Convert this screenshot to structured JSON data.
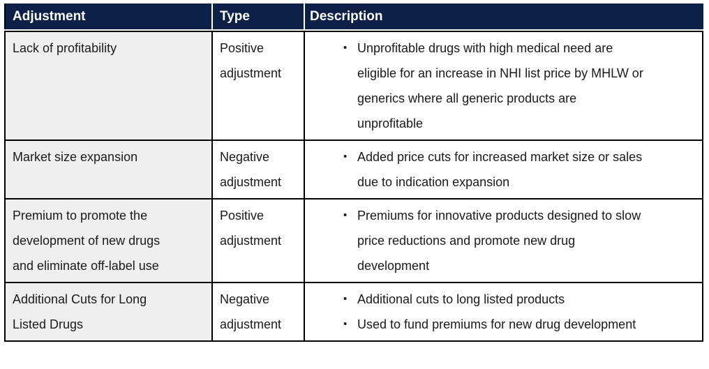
{
  "colors": {
    "header_bg": "#0d2048",
    "header_text": "#ffffff",
    "row_label_bg": "#efefef",
    "border": "#000000",
    "body_text": "#1a1a1a",
    "page_bg": "#ffffff"
  },
  "table": {
    "bullet_char": "•",
    "columns": [
      "Adjustment",
      "Type",
      "Description"
    ],
    "rows": [
      {
        "adjustment": "Lack of profitability",
        "type": "Positive\nadjustment",
        "description": [
          "Unprofitable drugs with high medical need are\neligible for an increase in NHI list price by MHLW or\ngenerics where all generic products are\nunprofitable"
        ]
      },
      {
        "adjustment": "Market size expansion",
        "type": "Negative\nadjustment",
        "description": [
          "Added price cuts for increased market size or sales\ndue to indication expansion"
        ]
      },
      {
        "adjustment": "Premium to promote the\ndevelopment of new drugs\nand eliminate off-label use",
        "type": "Positive\nadjustment",
        "description": [
          "Premiums for innovative products designed to slow\nprice reductions and promote new drug\ndevelopment"
        ]
      },
      {
        "adjustment": "Additional Cuts for Long\nListed Drugs",
        "type": "Negative\nadjustment",
        "description": [
          "Additional cuts to long listed products",
          "Used to fund premiums for new drug development"
        ]
      }
    ]
  }
}
